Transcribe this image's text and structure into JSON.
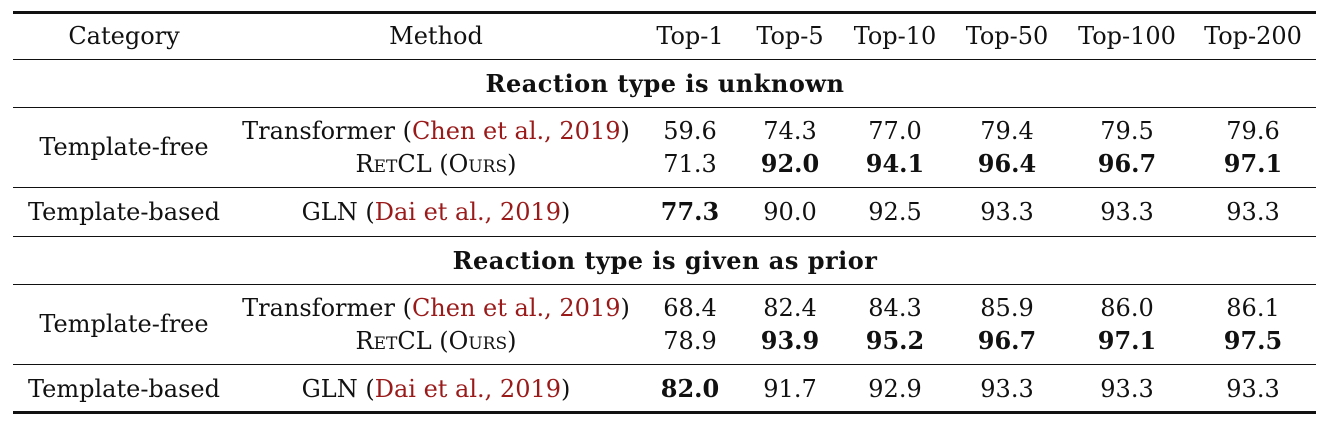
{
  "header": [
    "Category",
    "Method",
    "Top-1",
    "Top-5",
    "Top-10",
    "Top-50",
    "Top-100",
    "Top-200"
  ],
  "sections": [
    {
      "title": "Reaction type is unknown",
      "groups": [
        {
          "category": "Template-free",
          "rows": [
            {
              "method": "Transformer",
              "cite_open": " (",
              "cite": "Chen et al., 2019",
              "cite_close": ")",
              "values": [
                "59.6",
                "74.3",
                "77.0",
                "79.4",
                "79.5",
                "79.6"
              ],
              "bold": [
                false,
                false,
                false,
                false,
                false,
                false
              ]
            },
            {
              "method": "RetCL (Ours)",
              "values": [
                "71.3",
                "92.0",
                "94.1",
                "96.4",
                "96.7",
                "97.1"
              ],
              "bold": [
                false,
                true,
                true,
                true,
                true,
                true
              ]
            }
          ]
        },
        {
          "category": "Template-based",
          "rows": [
            {
              "method": "GLN",
              "cite_open": " (",
              "cite": "Dai et al., 2019",
              "cite_close": ")",
              "values": [
                "77.3",
                "90.0",
                "92.5",
                "93.3",
                "93.3",
                "93.3"
              ],
              "bold": [
                true,
                false,
                false,
                false,
                false,
                false
              ]
            }
          ]
        }
      ]
    },
    {
      "title": "Reaction type is given as prior",
      "groups": [
        {
          "category": "Template-free",
          "rows": [
            {
              "method": "Transformer",
              "cite_open": " (",
              "cite": "Chen et al., 2019",
              "cite_close": ")",
              "values": [
                "68.4",
                "82.4",
                "84.3",
                "85.9",
                "86.0",
                "86.1"
              ],
              "bold": [
                false,
                false,
                false,
                false,
                false,
                false
              ]
            },
            {
              "method": "RetCL (Ours)",
              "values": [
                "78.9",
                "93.9",
                "95.2",
                "96.7",
                "97.1",
                "97.5"
              ],
              "bold": [
                false,
                true,
                true,
                true,
                true,
                true
              ]
            }
          ]
        },
        {
          "category": "Template-based",
          "rows": [
            {
              "method": "GLN",
              "cite_open": " (",
              "cite": "Dai et al., 2019",
              "cite_close": ")",
              "values": [
                "82.0",
                "91.7",
                "92.9",
                "93.3",
                "93.3",
                "93.3"
              ],
              "bold": [
                true,
                false,
                false,
                false,
                false,
                false
              ]
            }
          ]
        }
      ]
    }
  ]
}
